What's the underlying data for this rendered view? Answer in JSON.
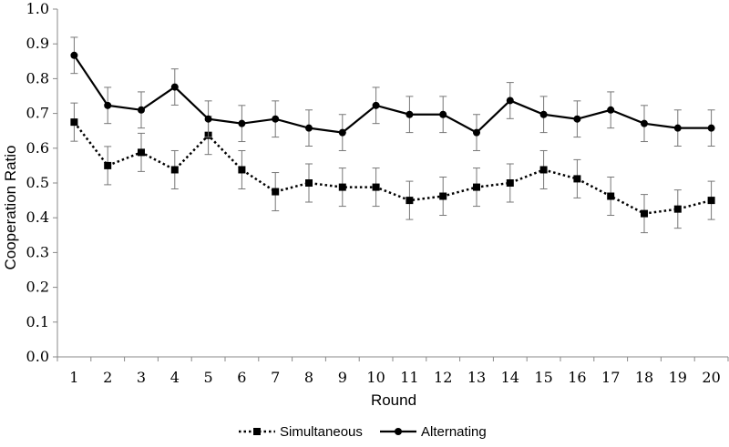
{
  "chart_data": {
    "type": "line",
    "xlabel": "Round",
    "ylabel": "Cooperation Ratio",
    "x": [
      1,
      2,
      3,
      4,
      5,
      6,
      7,
      8,
      9,
      10,
      11,
      12,
      13,
      14,
      15,
      16,
      17,
      18,
      19,
      20
    ],
    "ylim": [
      0.0,
      1.0
    ],
    "yticks": [
      "0.0",
      "0.1",
      "0.2",
      "0.3",
      "0.4",
      "0.5",
      "0.6",
      "0.7",
      "0.8",
      "0.9",
      "1.0"
    ],
    "grid": false,
    "legend_position": "bottom",
    "series": [
      {
        "name": "Simultaneous",
        "style": "dotted",
        "marker": "square",
        "color": "#000000",
        "values": [
          0.675,
          0.55,
          0.588,
          0.538,
          0.637,
          0.538,
          0.475,
          0.5,
          0.488,
          0.488,
          0.45,
          0.462,
          0.488,
          0.5,
          0.538,
          0.512,
          0.462,
          0.412,
          0.425,
          0.45
        ],
        "error": 0.055
      },
      {
        "name": "Alternating",
        "style": "solid",
        "marker": "circle",
        "color": "#000000",
        "values": [
          0.867,
          0.723,
          0.71,
          0.776,
          0.684,
          0.671,
          0.684,
          0.658,
          0.645,
          0.723,
          0.697,
          0.697,
          0.645,
          0.737,
          0.697,
          0.684,
          0.71,
          0.671,
          0.658,
          0.658
        ],
        "error": 0.052
      }
    ]
  }
}
